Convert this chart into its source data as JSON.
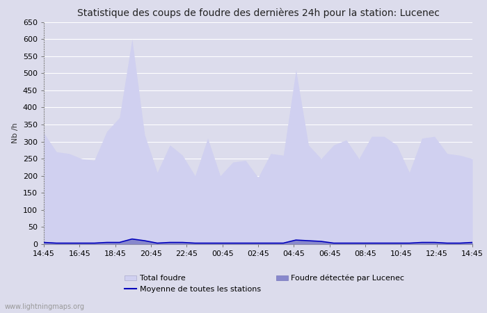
{
  "title": "Statistique des coups de foudre des dernières 24h pour la station: Lucenec",
  "ylabel": "Nb /h",
  "ylim": [
    0,
    650
  ],
  "yticks": [
    0,
    50,
    100,
    150,
    200,
    250,
    300,
    350,
    400,
    450,
    500,
    550,
    600,
    650
  ],
  "x_tick_labels": [
    "14:45",
    "16:45",
    "18:45",
    "20:45",
    "22:45",
    "00:45",
    "02:45",
    "04:45",
    "06:45",
    "08:45",
    "10:45",
    "12:45",
    "14:45"
  ],
  "background_color": "#dcdcec",
  "plot_bg_color": "#dcdcec",
  "grid_color": "#ffffff",
  "total_foudre_color": "#d0d0f0",
  "local_foudre_color": "#8888cc",
  "avg_line_color": "#0000bb",
  "total_foudre_values": [
    325,
    270,
    265,
    250,
    245,
    330,
    370,
    600,
    320,
    210,
    290,
    260,
    200,
    310,
    200,
    240,
    245,
    195,
    265,
    260,
    510,
    290,
    250,
    290,
    305,
    250,
    315,
    315,
    290,
    210,
    310,
    315,
    265,
    260,
    250
  ],
  "local_foudre_values": [
    5,
    3,
    3,
    3,
    3,
    5,
    5,
    15,
    10,
    3,
    5,
    5,
    3,
    3,
    3,
    3,
    3,
    3,
    3,
    3,
    12,
    10,
    8,
    3,
    3,
    3,
    3,
    3,
    3,
    3,
    5,
    5,
    3,
    3,
    5
  ],
  "avg_line_values": [
    5,
    3,
    3,
    3,
    3,
    5,
    5,
    15,
    10,
    3,
    5,
    5,
    3,
    3,
    3,
    3,
    3,
    3,
    3,
    3,
    12,
    10,
    8,
    3,
    3,
    3,
    3,
    3,
    3,
    3,
    5,
    5,
    3,
    3,
    5
  ],
  "watermark": "www.lightningmaps.org",
  "title_fontsize": 10,
  "axis_fontsize": 8,
  "tick_fontsize": 8,
  "legend_fontsize": 8
}
